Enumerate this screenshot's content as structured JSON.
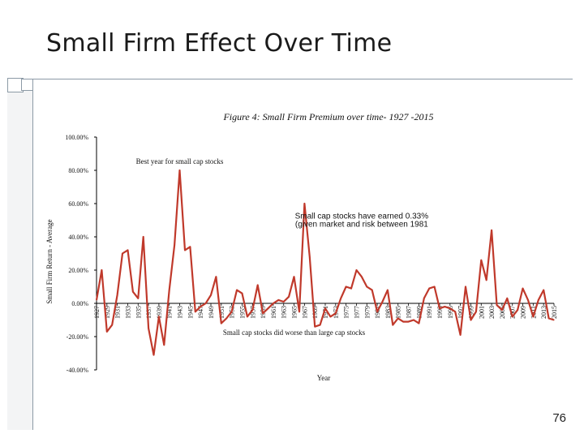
{
  "slide": {
    "title": "Small Firm Effect Over Time",
    "page_number": "76"
  },
  "colors": {
    "series": "#c0392b",
    "axis": "#000000",
    "accent": "#8c9aa6"
  },
  "chart_data": {
    "type": "line",
    "title": "Figure 4: Small Firm Premium over time- 1927 -2015",
    "xlabel": "Year",
    "ylabel": "Small Firm Return - Average",
    "ylim": [
      -0.4,
      1.0
    ],
    "y_ticks": [
      "100.00%",
      "80.00%",
      "60.00%",
      "40.00%",
      "20.00%",
      "0.00%",
      "-20.00%",
      "-40.00%"
    ],
    "x_tick_labels": [
      "1927",
      "1929",
      "1931",
      "1933",
      "1935",
      "1937",
      "1939",
      "1941",
      "1943",
      "1945",
      "1947",
      "1949",
      "1951",
      "1953",
      "1955",
      "1957",
      "1959",
      "1961",
      "1963",
      "1965",
      "1967",
      "1969",
      "1971",
      "1973",
      "1975",
      "1977",
      "1979",
      "1981",
      "1983",
      "1985",
      "1987",
      "1989",
      "1991",
      "1993",
      "1995",
      "1997",
      "1999",
      "2001",
      "2003",
      "2005",
      "2007",
      "2009",
      "2011",
      "2013",
      "2015"
    ],
    "series": [
      {
        "name": "Small Firm Premium",
        "x": [
          1927,
          1928,
          1929,
          1930,
          1931,
          1932,
          1933,
          1934,
          1935,
          1936,
          1937,
          1938,
          1939,
          1940,
          1941,
          1942,
          1943,
          1944,
          1945,
          1946,
          1947,
          1948,
          1949,
          1950,
          1951,
          1952,
          1953,
          1954,
          1955,
          1956,
          1957,
          1958,
          1959,
          1960,
          1961,
          1962,
          1963,
          1964,
          1965,
          1966,
          1967,
          1968,
          1969,
          1970,
          1971,
          1972,
          1973,
          1974,
          1975,
          1976,
          1977,
          1978,
          1979,
          1980,
          1981,
          1982,
          1983,
          1984,
          1985,
          1986,
          1987,
          1988,
          1989,
          1990,
          1991,
          1992,
          1993,
          1994,
          1995,
          1996,
          1997,
          1998,
          1999,
          2000,
          2001,
          2002,
          2003,
          2004,
          2005,
          2006,
          2007,
          2008,
          2009,
          2010,
          2011,
          2012,
          2013,
          2014,
          2015
        ],
        "values": [
          0.02,
          0.2,
          -0.17,
          -0.13,
          0.05,
          0.3,
          0.32,
          0.07,
          0.03,
          0.4,
          -0.15,
          -0.31,
          -0.08,
          -0.25,
          0.08,
          0.35,
          0.8,
          0.32,
          0.34,
          -0.05,
          -0.02,
          0.0,
          0.05,
          0.16,
          -0.12,
          -0.09,
          -0.05,
          0.08,
          0.06,
          -0.08,
          -0.04,
          0.11,
          -0.06,
          -0.03,
          0.0,
          0.02,
          0.01,
          0.04,
          0.16,
          -0.05,
          0.6,
          0.28,
          -0.14,
          -0.13,
          -0.03,
          -0.08,
          -0.06,
          0.03,
          0.1,
          0.09,
          0.2,
          0.16,
          0.1,
          0.08,
          -0.05,
          0.01,
          0.08,
          -0.13,
          -0.09,
          -0.11,
          -0.11,
          -0.1,
          -0.12,
          0.03,
          0.09,
          0.1,
          -0.03,
          -0.02,
          -0.03,
          -0.05,
          -0.19,
          0.1,
          -0.1,
          -0.05,
          0.26,
          0.14,
          0.44,
          -0.01,
          -0.04,
          0.03,
          -0.08,
          -0.04,
          0.09,
          0.02,
          -0.08,
          0.02,
          0.08,
          -0.09,
          -0.1
        ]
      }
    ],
    "annotations": [
      {
        "text": "Best year for small cap stocks",
        "year": 1943,
        "value": 0.84,
        "style": "serif"
      },
      {
        "text": "Small cap stocks have earned 0.33%",
        "year": 1978,
        "value": 0.51,
        "style": "sans"
      },
      {
        "text": "(given market and  risk between 1981",
        "year": 1978,
        "value": 0.46,
        "style": "sans"
      },
      {
        "text": "Small cap stocks did worse than large cap stocks",
        "year": 1965,
        "value": -0.19,
        "style": "serif"
      }
    ]
  }
}
